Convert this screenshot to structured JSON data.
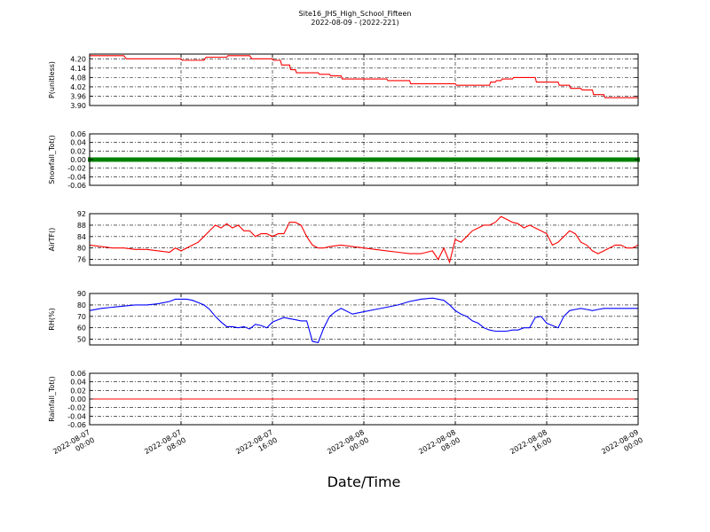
{
  "title": "Site16_JHS_High_School_Fifteen",
  "subtitle": "2022-08-09 - (2022-221)",
  "xlabel": "Date/Time",
  "x_ticks": [
    "2022-08-07\n00:00",
    "2022-08-07\n08:00",
    "2022-08-07\n16:00",
    "2022-08-08\n00:00",
    "2022-08-08\n08:00",
    "2022-08-08\n16:00",
    "2022-08-09\n00:00"
  ],
  "chart_data": [
    {
      "type": "line",
      "ylabel": "P(unitless)",
      "ylim": [
        3.9,
        4.23
      ],
      "yticks": [
        "4.20",
        "4.14",
        "4.08",
        "4.02",
        "3.96",
        "3.90"
      ],
      "grid": true,
      "series": [
        {
          "color": "#ff0000",
          "x": [
            0,
            3,
            3.2,
            4,
            6,
            8,
            8.1,
            10,
            10.2,
            12,
            12.1,
            14,
            14.2,
            16,
            16.1,
            16.7,
            16.8,
            17.5,
            17.6,
            18,
            18.1,
            20,
            20.1,
            21,
            21.1,
            22,
            22.1,
            26,
            26.1,
            28,
            28.1,
            30,
            30.1,
            32,
            32.1,
            35,
            35.1,
            35.5,
            35.6,
            36,
            36.1,
            37,
            37.1,
            39,
            39.1,
            41,
            41.1,
            42,
            42.1,
            43,
            43.1,
            44,
            44.1,
            45,
            45.1,
            47,
            47.1,
            48
          ],
          "values": [
            4.22,
            4.22,
            4.2,
            4.2,
            4.2,
            4.2,
            4.19,
            4.19,
            4.21,
            4.21,
            4.22,
            4.22,
            4.2,
            4.2,
            4.19,
            4.19,
            4.16,
            4.16,
            4.13,
            4.13,
            4.11,
            4.11,
            4.1,
            4.1,
            4.09,
            4.09,
            4.07,
            4.07,
            4.06,
            4.06,
            4.04,
            4.04,
            4.04,
            4.04,
            4.03,
            4.03,
            4.05,
            4.05,
            4.06,
            4.06,
            4.07,
            4.07,
            4.08,
            4.08,
            4.05,
            4.05,
            4.03,
            4.03,
            4.01,
            4.01,
            4.0,
            4.0,
            3.97,
            3.97,
            3.95,
            3.95,
            3.95,
            3.95
          ]
        }
      ]
    },
    {
      "type": "line",
      "ylabel": "Snowfall_Tot()",
      "ylim": [
        -0.06,
        0.06
      ],
      "yticks": [
        "0.06",
        "0.04",
        "0.02",
        "0.00",
        "-0.02",
        "-0.04",
        "-0.06"
      ],
      "grid": true,
      "series": [
        {
          "color": "#008000",
          "marker": "square",
          "x": [
            0,
            48
          ],
          "values": [
            0.0,
            0.0
          ]
        }
      ]
    },
    {
      "type": "line",
      "ylabel": "AirTF()",
      "ylim": [
        74,
        92
      ],
      "yticks": [
        "92",
        "88",
        "84",
        "80",
        "76"
      ],
      "grid": true,
      "series": [
        {
          "color": "#ff0000",
          "x": [
            0,
            1,
            2,
            3,
            4,
            5,
            6,
            7,
            7.5,
            8,
            8.5,
            9,
            9.5,
            10,
            10.5,
            11,
            11.5,
            12,
            12.5,
            13,
            13.5,
            14,
            14.5,
            15,
            15.5,
            16,
            16.5,
            17,
            17.5,
            18,
            18.5,
            19,
            19.5,
            20,
            20.5,
            21,
            22,
            23,
            24,
            25,
            26,
            27,
            28,
            29,
            30,
            30.5,
            31,
            31.5,
            32,
            32.5,
            33,
            33.5,
            34,
            34.5,
            35,
            35.5,
            36,
            36.5,
            37,
            37.5,
            38,
            38.5,
            39,
            39.5,
            40,
            40.5,
            41,
            41.5,
            42,
            42.5,
            43,
            43.5,
            44,
            44.5,
            45,
            46,
            46.5,
            47,
            47.5,
            48
          ],
          "values": [
            81,
            80.5,
            80,
            80,
            79.5,
            79.5,
            79,
            78.5,
            80,
            79,
            80,
            81,
            82,
            84,
            86,
            88,
            87,
            88.5,
            87,
            88,
            86,
            86,
            84,
            85,
            85,
            84,
            85,
            85,
            89,
            89,
            88,
            84,
            81,
            80,
            80,
            80.5,
            81,
            80.5,
            80,
            79.5,
            79,
            78.5,
            78,
            78,
            79,
            76,
            80,
            75,
            83,
            82,
            84,
            86,
            87,
            88,
            88,
            89,
            91,
            90,
            89,
            88.5,
            87,
            88,
            87,
            86,
            85,
            81,
            82,
            84,
            86,
            85,
            82,
            81,
            79,
            78,
            79,
            81,
            81,
            80,
            80,
            81
          ]
        }
      ]
    },
    {
      "type": "line",
      "ylabel": "RH(%)",
      "ylim": [
        45,
        90
      ],
      "yticks": [
        "90",
        "80",
        "70",
        "60",
        "50"
      ],
      "grid": true,
      "series": [
        {
          "color": "#0000ff",
          "x": [
            0,
            1,
            2,
            3,
            4,
            5,
            6,
            7,
            7.5,
            8,
            8.5,
            9,
            9.5,
            10,
            10.5,
            11,
            11.5,
            12,
            12.5,
            13,
            13.5,
            14,
            14.5,
            15,
            15.5,
            16,
            16.5,
            17,
            17.5,
            18,
            18.5,
            19,
            19.5,
            20,
            20.5,
            21,
            21.5,
            22,
            23,
            24,
            25,
            26,
            27,
            28,
            29,
            30,
            30.5,
            31,
            31.5,
            32,
            32.5,
            33,
            33.5,
            34,
            34.5,
            35,
            35.5,
            36,
            36.5,
            37,
            37.5,
            38,
            38.5,
            39,
            39.5,
            40,
            40.5,
            41,
            41.5,
            42,
            42.5,
            43,
            43.5,
            44,
            44.5,
            45,
            45.5,
            46,
            46.5,
            47,
            47.5,
            48
          ],
          "values": [
            75,
            77,
            78,
            79,
            80,
            80,
            81,
            83,
            85,
            85,
            85,
            84,
            82,
            80,
            76,
            70,
            65,
            61,
            61,
            60,
            61,
            59,
            63,
            62,
            60,
            65,
            67,
            69,
            68,
            67,
            66,
            66,
            48,
            47,
            60,
            70,
            74,
            77,
            72,
            74,
            76,
            78,
            80,
            83,
            85,
            86,
            85,
            84,
            80,
            75,
            72,
            70,
            66,
            64,
            60,
            58,
            57,
            57,
            57,
            58,
            58,
            60,
            60,
            69,
            70,
            64,
            62,
            60,
            70,
            75,
            76,
            77,
            76,
            75,
            76,
            77,
            77,
            77,
            77,
            77,
            77,
            77
          ]
        }
      ]
    },
    {
      "type": "line",
      "ylabel": "Rainfall_Tot()",
      "ylim": [
        -0.06,
        0.06
      ],
      "yticks": [
        "0.06",
        "0.04",
        "0.02",
        "0.00",
        "-0.02",
        "-0.04",
        "-0.06"
      ],
      "grid": true,
      "series": [
        {
          "color": "#ff0000",
          "x": [
            0,
            48
          ],
          "values": [
            0.0,
            0.0
          ]
        }
      ]
    }
  ]
}
